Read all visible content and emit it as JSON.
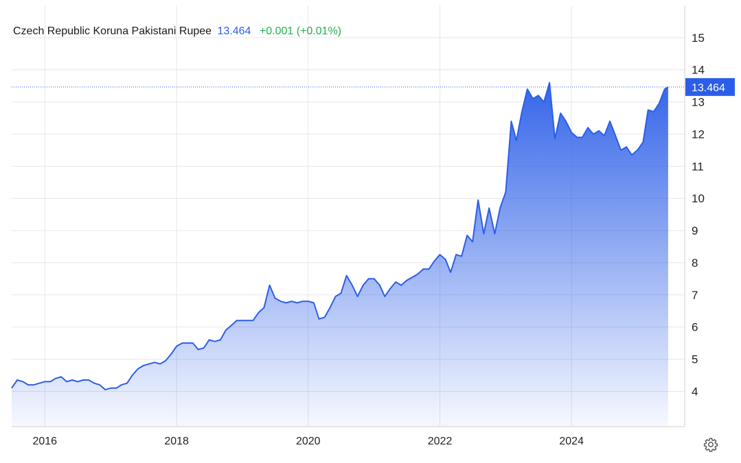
{
  "header": {
    "pair_name": "Czech Republic Koruna Pakistani Rupee",
    "price": "13.464",
    "change": "+0.001 (+0.01%)"
  },
  "price_tag": "13.464",
  "colors": {
    "line": "#2b5ee8",
    "price": "#2b5ee8",
    "change_positive": "#22b14c",
    "grid": "#e6e6e6",
    "axis_text": "#222222"
  },
  "icons": {
    "settings": "gear-icon"
  },
  "chart_data": {
    "type": "area",
    "title": "",
    "xlabel": "",
    "ylabel": "",
    "grid": true,
    "y_axis_position": "right",
    "x_ticks": [
      "2016",
      "2018",
      "2020",
      "2022",
      "2024"
    ],
    "y_ticks": [
      "4",
      "5",
      "6",
      "7",
      "8",
      "9",
      "10",
      "11",
      "12",
      "13",
      "14",
      "15"
    ],
    "ylim": [
      2.9,
      16
    ],
    "xlim": [
      "2015-07-01",
      "2025-09-20"
    ],
    "last_value": 13.464,
    "series": [
      {
        "values": [
          [
            "2015-07-01",
            4.1
          ],
          [
            "2015-08-01",
            4.35
          ],
          [
            "2015-09-01",
            4.3
          ],
          [
            "2015-10-01",
            4.2
          ],
          [
            "2015-11-01",
            4.2
          ],
          [
            "2015-12-01",
            4.25
          ],
          [
            "2016-01-01",
            4.3
          ],
          [
            "2016-02-01",
            4.3
          ],
          [
            "2016-03-01",
            4.4
          ],
          [
            "2016-04-01",
            4.45
          ],
          [
            "2016-05-01",
            4.3
          ],
          [
            "2016-06-01",
            4.35
          ],
          [
            "2016-07-01",
            4.3
          ],
          [
            "2016-08-01",
            4.35
          ],
          [
            "2016-09-01",
            4.35
          ],
          [
            "2016-10-01",
            4.25
          ],
          [
            "2016-11-01",
            4.2
          ],
          [
            "2016-12-01",
            4.05
          ],
          [
            "2017-01-01",
            4.1
          ],
          [
            "2017-02-01",
            4.1
          ],
          [
            "2017-03-01",
            4.2
          ],
          [
            "2017-04-01",
            4.25
          ],
          [
            "2017-05-01",
            4.5
          ],
          [
            "2017-06-01",
            4.7
          ],
          [
            "2017-07-01",
            4.8
          ],
          [
            "2017-08-01",
            4.85
          ],
          [
            "2017-09-01",
            4.9
          ],
          [
            "2017-10-01",
            4.85
          ],
          [
            "2017-11-01",
            4.95
          ],
          [
            "2017-12-01",
            5.15
          ],
          [
            "2018-01-01",
            5.4
          ],
          [
            "2018-02-01",
            5.5
          ],
          [
            "2018-03-01",
            5.5
          ],
          [
            "2018-04-01",
            5.5
          ],
          [
            "2018-05-01",
            5.3
          ],
          [
            "2018-06-01",
            5.35
          ],
          [
            "2018-07-01",
            5.6
          ],
          [
            "2018-08-01",
            5.55
          ],
          [
            "2018-09-01",
            5.6
          ],
          [
            "2018-10-01",
            5.9
          ],
          [
            "2018-11-01",
            6.05
          ],
          [
            "2018-12-01",
            6.2
          ],
          [
            "2019-01-01",
            6.2
          ],
          [
            "2019-02-01",
            6.2
          ],
          [
            "2019-03-01",
            6.2
          ],
          [
            "2019-04-01",
            6.45
          ],
          [
            "2019-05-01",
            6.6
          ],
          [
            "2019-06-01",
            7.3
          ],
          [
            "2019-07-01",
            6.9
          ],
          [
            "2019-08-01",
            6.8
          ],
          [
            "2019-09-01",
            6.75
          ],
          [
            "2019-10-01",
            6.8
          ],
          [
            "2019-11-01",
            6.75
          ],
          [
            "2019-12-01",
            6.8
          ],
          [
            "2020-01-01",
            6.8
          ],
          [
            "2020-02-01",
            6.75
          ],
          [
            "2020-03-01",
            6.25
          ],
          [
            "2020-04-01",
            6.3
          ],
          [
            "2020-05-01",
            6.6
          ],
          [
            "2020-06-01",
            6.95
          ],
          [
            "2020-07-01",
            7.05
          ],
          [
            "2020-08-01",
            7.6
          ],
          [
            "2020-09-01",
            7.3
          ],
          [
            "2020-10-01",
            6.95
          ],
          [
            "2020-11-01",
            7.3
          ],
          [
            "2020-12-01",
            7.5
          ],
          [
            "2021-01-01",
            7.5
          ],
          [
            "2021-02-01",
            7.3
          ],
          [
            "2021-03-01",
            6.95
          ],
          [
            "2021-04-01",
            7.2
          ],
          [
            "2021-05-01",
            7.4
          ],
          [
            "2021-06-01",
            7.3
          ],
          [
            "2021-07-01",
            7.45
          ],
          [
            "2021-08-01",
            7.55
          ],
          [
            "2021-09-01",
            7.65
          ],
          [
            "2021-10-01",
            7.8
          ],
          [
            "2021-11-01",
            7.8
          ],
          [
            "2021-12-01",
            8.05
          ],
          [
            "2022-01-01",
            8.25
          ],
          [
            "2022-02-01",
            8.1
          ],
          [
            "2022-03-01",
            7.7
          ],
          [
            "2022-04-01",
            8.25
          ],
          [
            "2022-05-01",
            8.2
          ],
          [
            "2022-06-01",
            8.85
          ],
          [
            "2022-07-01",
            8.65
          ],
          [
            "2022-08-01",
            9.95
          ],
          [
            "2022-09-01",
            8.9
          ],
          [
            "2022-10-01",
            9.7
          ],
          [
            "2022-11-01",
            8.9
          ],
          [
            "2022-12-01",
            9.7
          ],
          [
            "2023-01-01",
            10.2
          ],
          [
            "2023-02-01",
            12.4
          ],
          [
            "2023-03-01",
            11.8
          ],
          [
            "2023-04-01",
            12.7
          ],
          [
            "2023-05-01",
            13.4
          ],
          [
            "2023-06-01",
            13.1
          ],
          [
            "2023-07-01",
            13.2
          ],
          [
            "2023-08-01",
            13.0
          ],
          [
            "2023-09-01",
            13.6
          ],
          [
            "2023-10-01",
            11.85
          ],
          [
            "2023-11-01",
            12.65
          ],
          [
            "2023-12-01",
            12.4
          ],
          [
            "2024-01-01",
            12.05
          ],
          [
            "2024-02-01",
            11.9
          ],
          [
            "2024-03-01",
            11.9
          ],
          [
            "2024-04-01",
            12.2
          ],
          [
            "2024-05-01",
            12.0
          ],
          [
            "2024-06-01",
            12.1
          ],
          [
            "2024-07-01",
            11.95
          ],
          [
            "2024-08-01",
            12.4
          ],
          [
            "2024-09-01",
            11.95
          ],
          [
            "2024-10-01",
            11.5
          ],
          [
            "2024-11-01",
            11.6
          ],
          [
            "2024-12-01",
            11.35
          ],
          [
            "2025-01-01",
            11.5
          ],
          [
            "2025-02-01",
            11.75
          ],
          [
            "2025-03-01",
            12.75
          ],
          [
            "2025-04-01",
            12.7
          ],
          [
            "2025-05-01",
            12.95
          ],
          [
            "2025-06-01",
            13.4
          ],
          [
            "2025-06-20",
            13.464
          ]
        ]
      }
    ]
  }
}
